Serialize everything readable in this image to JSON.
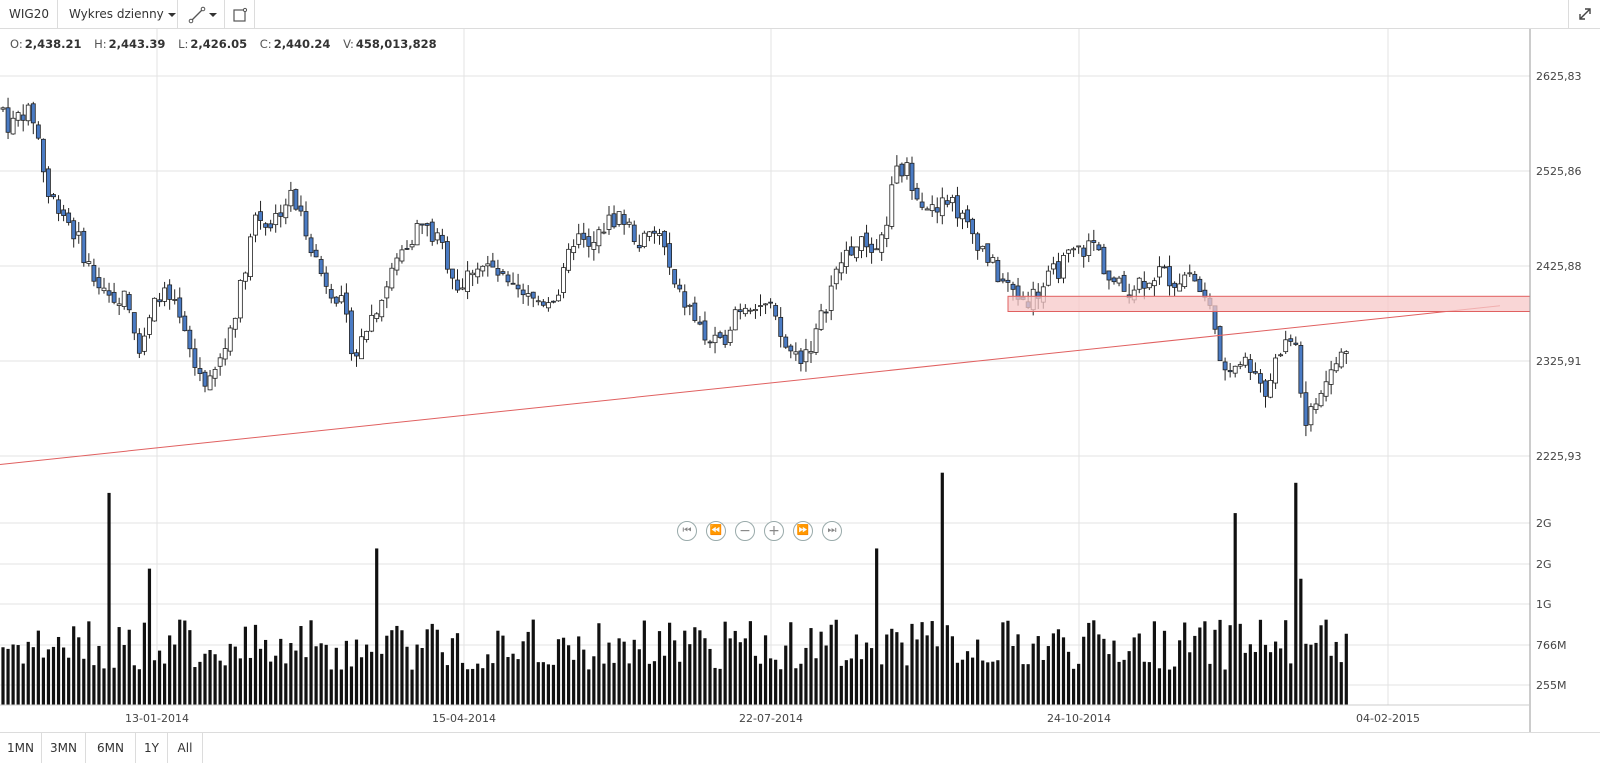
{
  "toolbar": {
    "symbol": "WIG20",
    "chart_type": "Wykres dzienny"
  },
  "ohlc": {
    "o_label": "O:",
    "o": "2,438.21",
    "h_label": "H:",
    "h": "2,443.39",
    "l_label": "L:",
    "l": "2,426.05",
    "c_label": "C:",
    "c": "2,440.24",
    "v_label": "V:",
    "v": "458,013,828"
  },
  "range_buttons": [
    "1MN",
    "3MN",
    "6MN",
    "1Y",
    "All"
  ],
  "colors": {
    "down_candle": "#4a7bc4",
    "up_candle": "#ffffff",
    "outline": "#222222",
    "trendline": "#e06060",
    "zone_fill": "#f7c8c8",
    "grid": "#e3e3e3"
  },
  "chart_data": {
    "type": "candlestick",
    "price_axis": {
      "ticks": [
        "2625.83",
        "2525.86",
        "2425.88",
        "2325.91",
        "2225.93"
      ],
      "ylim": [
        2180,
        2660
      ]
    },
    "volume_axis": {
      "ticks": [
        "2G",
        "2G",
        "1G",
        "766M",
        "255M"
      ]
    },
    "x_axis": {
      "labels": [
        "13-01-2014",
        "15-04-2014",
        "22-07-2014",
        "24-10-2014",
        "04-02-2015"
      ]
    },
    "close_path": [
      [
        0,
        2600
      ],
      [
        10,
        2570
      ],
      [
        22,
        2590
      ],
      [
        35,
        2580
      ],
      [
        48,
        2500
      ],
      [
        60,
        2490
      ],
      [
        80,
        2450
      ],
      [
        95,
        2410
      ],
      [
        108,
        2390
      ],
      [
        125,
        2400
      ],
      [
        140,
        2340
      ],
      [
        160,
        2400
      ],
      [
        175,
        2380
      ],
      [
        195,
        2320
      ],
      [
        210,
        2300
      ],
      [
        225,
        2340
      ],
      [
        240,
        2400
      ],
      [
        255,
        2480
      ],
      [
        270,
        2470
      ],
      [
        290,
        2500
      ],
      [
        305,
        2470
      ],
      [
        320,
        2420
      ],
      [
        340,
        2390
      ],
      [
        355,
        2330
      ],
      [
        370,
        2370
      ],
      [
        385,
        2400
      ],
      [
        400,
        2440
      ],
      [
        420,
        2470
      ],
      [
        440,
        2450
      ],
      [
        460,
        2400
      ],
      [
        475,
        2430
      ],
      [
        495,
        2420
      ],
      [
        510,
        2400
      ],
      [
        525,
        2390
      ],
      [
        545,
        2390
      ],
      [
        560,
        2400
      ],
      [
        575,
        2460
      ],
      [
        590,
        2440
      ],
      [
        605,
        2470
      ],
      [
        620,
        2480
      ],
      [
        640,
        2450
      ],
      [
        660,
        2460
      ],
      [
        675,
        2400
      ],
      [
        690,
        2380
      ],
      [
        705,
        2350
      ],
      [
        720,
        2340
      ],
      [
        735,
        2380
      ],
      [
        750,
        2390
      ],
      [
        770,
        2380
      ],
      [
        785,
        2340
      ],
      [
        800,
        2330
      ],
      [
        815,
        2350
      ],
      [
        830,
        2400
      ],
      [
        845,
        2440
      ],
      [
        865,
        2450
      ],
      [
        880,
        2440
      ],
      [
        895,
        2520
      ],
      [
        905,
        2530
      ],
      [
        920,
        2500
      ],
      [
        935,
        2480
      ],
      [
        950,
        2500
      ],
      [
        965,
        2470
      ],
      [
        980,
        2450
      ],
      [
        995,
        2420
      ],
      [
        1010,
        2400
      ],
      [
        1025,
        2390
      ],
      [
        1040,
        2400
      ],
      [
        1055,
        2420
      ],
      [
        1075,
        2440
      ],
      [
        1095,
        2450
      ],
      [
        1110,
        2410
      ],
      [
        1125,
        2400
      ],
      [
        1140,
        2410
      ],
      [
        1160,
        2420
      ],
      [
        1175,
        2410
      ],
      [
        1190,
        2420
      ],
      [
        1205,
        2390
      ],
      [
        1215,
        2370
      ],
      [
        1222,
        2300
      ],
      [
        1235,
        2330
      ],
      [
        1255,
        2320
      ],
      [
        1265,
        2290
      ],
      [
        1280,
        2340
      ],
      [
        1295,
        2350
      ],
      [
        1305,
        2260
      ],
      [
        1320,
        2290
      ],
      [
        1335,
        2320
      ],
      [
        1348,
        2345
      ]
    ],
    "volume_spikes": [
      [
        108,
        2.1
      ],
      [
        148,
        1.35
      ],
      [
        376,
        1.55
      ],
      [
        875,
        1.55
      ],
      [
        942,
        2.3
      ],
      [
        1237,
        1.9
      ],
      [
        1296,
        2.2
      ],
      [
        1300,
        1.25
      ]
    ],
    "trendline": {
      "from": [
        0,
        2217
      ],
      "to": [
        1500,
        2384
      ]
    },
    "resistance_zone": {
      "x_start": 1008,
      "low": 2378,
      "high": 2394
    }
  }
}
